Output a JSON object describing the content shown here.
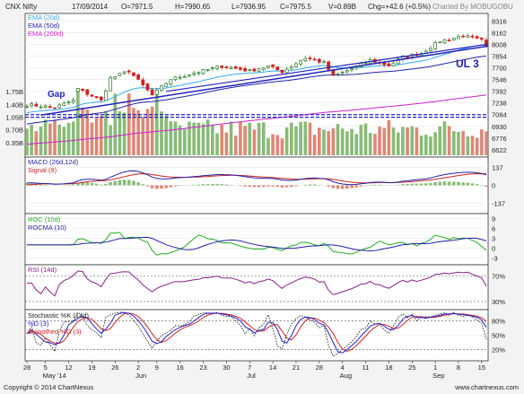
{
  "header": {
    "symbol": "CNX Nifty",
    "date": "17/09/2014",
    "open": "O=7971.5",
    "high": "H=7990.65",
    "low": "L=7936.95",
    "close": "C=7975.5",
    "volume": "V=0.89B",
    "change": "Chg=+42.6 (+0.5%)",
    "charted_by": "Charted By MOBUGOBU"
  },
  "footer": {
    "copyright": "Copyright © 2014 ChartNexus",
    "site": "www.chartnexus.com"
  },
  "colors": {
    "up": "#2a7a2a",
    "down": "#cc2222",
    "ema20": "#33aaee",
    "ema50": "#2222aa",
    "ema200": "#cc22cc",
    "trend": "#2222bb",
    "vol_up": "#88bb77",
    "vol_down": "#dd8877",
    "macd": "#2222aa",
    "signal": "#cc2222",
    "roc": "#22aa22",
    "rocma": "#2222aa",
    "rsi": "#882288",
    "stoch_k": "#2222cc",
    "stoch_d": "#cc2222",
    "stoch_smooth": "#000000"
  },
  "chart_data": [
    {
      "type": "candlestick",
      "legend": [
        "EMA (20d)",
        "EMA (50d)",
        "EMA (200d)"
      ],
      "y_ticks": [
        "8316",
        "8162",
        "8008",
        "7854",
        "7700",
        "7546",
        "7392",
        "7238",
        "7084",
        "6930",
        "6776",
        "6622"
      ],
      "ylim": [
        6550,
        8390
      ],
      "x_ticks": [
        "28",
        "5",
        "12",
        "19",
        "26",
        "2",
        "9",
        "16",
        "23",
        "30",
        "7",
        "14",
        "21",
        "28",
        "4",
        "11",
        "18",
        "25",
        "1",
        "8",
        "15"
      ],
      "month_labels": [
        "May '14",
        "Jun",
        "Jul",
        "Aug",
        "Sep"
      ],
      "annotations": [
        "Gap",
        "UL 3"
      ],
      "volume": {
        "y_ticks": [
          "1.75B",
          "1.40B",
          "1.05B",
          "0.70B",
          "0.35B"
        ],
        "ylim": [
          0,
          2.0
        ]
      }
    },
    {
      "type": "line",
      "legend": [
        "MACD (26d,12d)",
        "Signal (9)"
      ],
      "y_ticks": [
        "137",
        "0",
        "-137"
      ],
      "ylim": [
        -200,
        200
      ]
    },
    {
      "type": "line",
      "legend": [
        "ROC (10d)",
        "ROCMA (10)"
      ],
      "y_ticks": [
        "9",
        "6",
        "3",
        "0",
        "-3"
      ],
      "ylim": [
        -4.5,
        10
      ]
    },
    {
      "type": "line",
      "legend": [
        "RSI (14d)"
      ],
      "y_ticks": [
        "70%",
        "30%"
      ],
      "ylim": [
        20,
        85
      ]
    },
    {
      "type": "line",
      "legend": [
        "Stochastic %K (14d)",
        "%D (3)",
        "Smoothed %D (3)"
      ],
      "y_ticks": [
        "80%",
        "50%",
        "20%"
      ],
      "ylim": [
        0,
        100
      ]
    }
  ]
}
